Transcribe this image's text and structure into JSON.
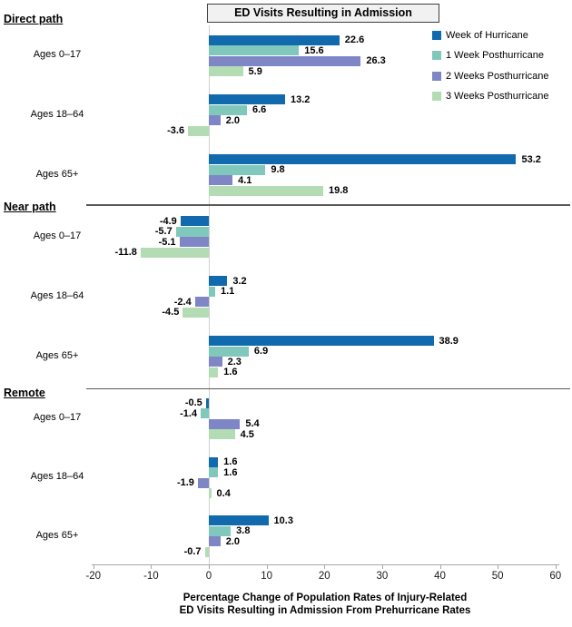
{
  "title_box": {
    "label": "ED Visits Resulting in Admission"
  },
  "legend": {
    "items": [
      {
        "label": "Week of Hurricane",
        "color": "#1169AE"
      },
      {
        "label": "1 Week Posthurricane",
        "color": "#7FC8BB"
      },
      {
        "label": "2 Weeks Posthurricane",
        "color": "#7E86C6"
      },
      {
        "label": "3 Weeks Posthurricane",
        "color": "#B3DCB4"
      }
    ]
  },
  "axis": {
    "ticks": [
      -20,
      -10,
      0,
      10,
      20,
      30,
      40,
      50,
      60
    ],
    "title_line1": "Percentage Change of Population Rates of Injury-Related",
    "title_line2": "ED Visits Resulting in Admission From Prehurricane Rates"
  },
  "chart_data": {
    "type": "bar",
    "orientation": "horizontal",
    "title": "ED Visits Resulting in Admission",
    "xlabel": "Percentage Change of Population Rates of Injury-Related ED Visits Resulting in Admission From Prehurricane Rates",
    "xlim": [
      -20,
      60
    ],
    "xticks": [
      -20,
      -10,
      0,
      10,
      20,
      30,
      40,
      50,
      60
    ],
    "grid": false,
    "legend_position": "top-right",
    "value_label_format": "one_decimal",
    "series_names": [
      "Week of Hurricane",
      "1 Week Posthurricane",
      "2 Weeks Posthurricane",
      "3 Weeks Posthurricane"
    ],
    "sections": [
      {
        "label": "Direct path",
        "groups": [
          {
            "label": "Ages 0–17",
            "values": [
              22.6,
              15.6,
              26.3,
              5.9
            ]
          },
          {
            "label": "Ages 18–64",
            "values": [
              13.2,
              6.6,
              2.0,
              -3.6
            ]
          },
          {
            "label": "Ages 65+",
            "values": [
              53.2,
              9.8,
              4.1,
              19.8
            ]
          }
        ]
      },
      {
        "label": "Near path",
        "groups": [
          {
            "label": "Ages 0–17",
            "values": [
              -4.9,
              -5.7,
              -5.1,
              -11.8
            ]
          },
          {
            "label": "Ages 18–64",
            "values": [
              3.2,
              1.1,
              -2.4,
              -4.5
            ]
          },
          {
            "label": "Ages 65+",
            "values": [
              38.9,
              6.9,
              2.3,
              1.6
            ]
          }
        ]
      },
      {
        "label": "Remote",
        "groups": [
          {
            "label": "Ages 0–17",
            "values": [
              -0.5,
              -1.4,
              5.4,
              4.5
            ]
          },
          {
            "label": "Ages 18–64",
            "values": [
              1.6,
              1.6,
              -1.9,
              0.4
            ]
          },
          {
            "label": "Ages 65+",
            "values": [
              10.3,
              3.8,
              2.0,
              -0.7
            ]
          }
        ]
      }
    ]
  }
}
